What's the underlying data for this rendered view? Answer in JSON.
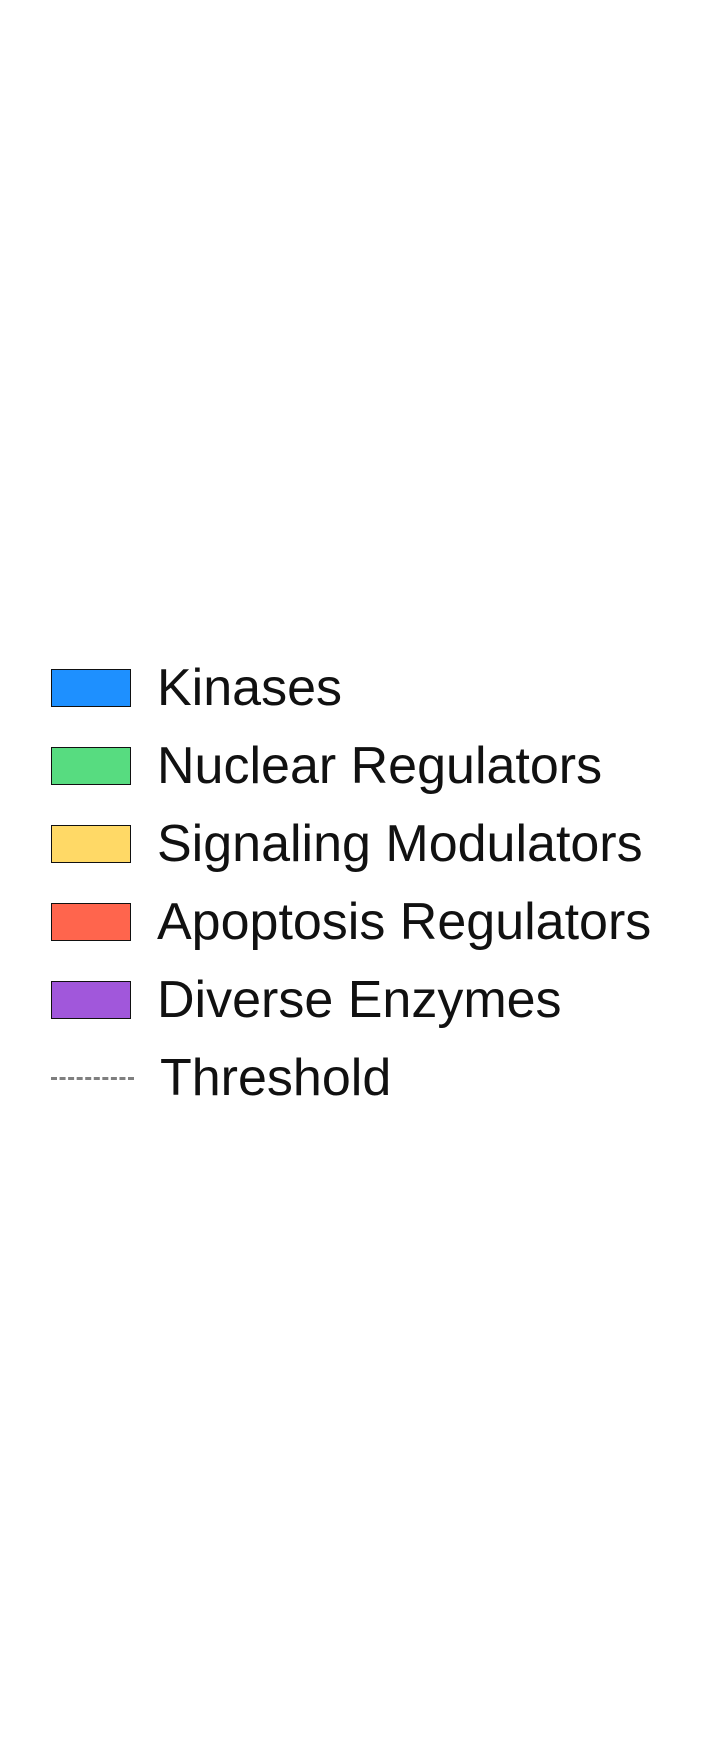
{
  "chart_data": {
    "type": "bar",
    "title": "",
    "xlabel": "",
    "ylabel": "",
    "legend_position": "left",
    "legend": [
      {
        "name": "Kinases",
        "kind": "patch",
        "color": "#1e90ff"
      },
      {
        "name": "Nuclear Regulators",
        "kind": "patch",
        "color": "#57dc80"
      },
      {
        "name": "Signaling Modulators",
        "kind": "patch",
        "color": "#ffd966"
      },
      {
        "name": "Apoptosis Regulators",
        "kind": "patch",
        "color": "#ff654d"
      },
      {
        "name": "Diverse Enzymes",
        "kind": "patch",
        "color": "#a157db"
      },
      {
        "name": "Threshold",
        "kind": "line",
        "color": "#7f7f7f",
        "style": "dashed"
      }
    ]
  }
}
